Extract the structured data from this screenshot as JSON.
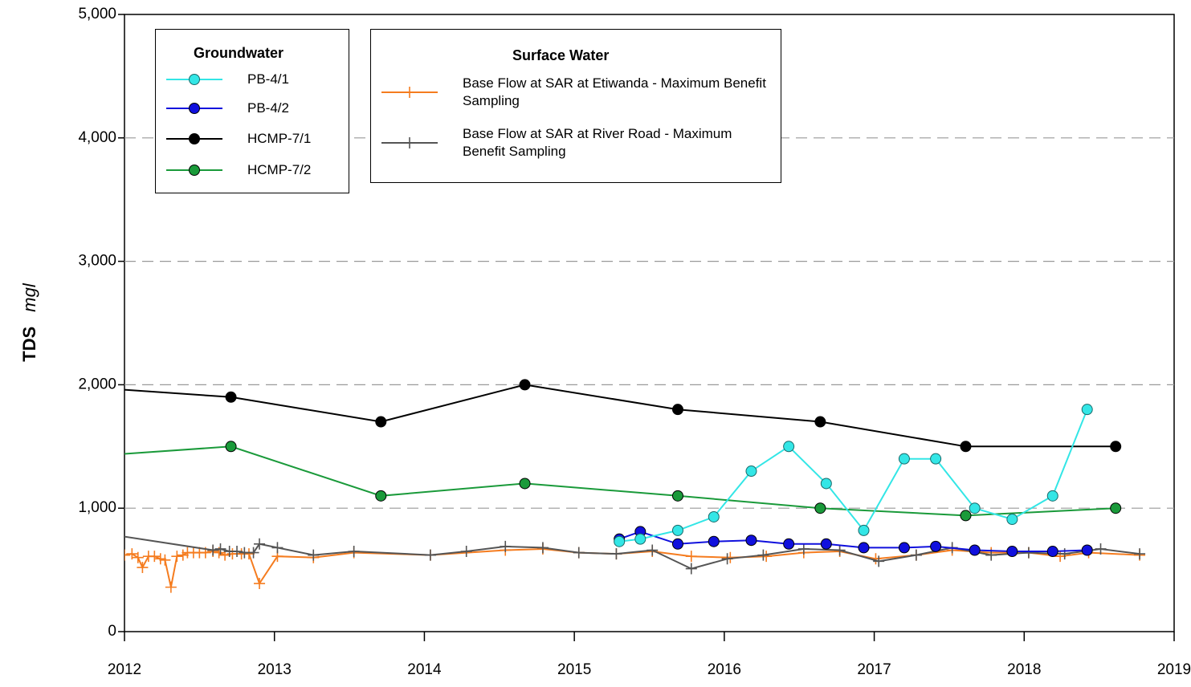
{
  "chart_data": {
    "type": "line",
    "y_label": "TDS",
    "y_unit": "mgl",
    "xlim": [
      2012,
      2019
    ],
    "xticks": [
      2012,
      2013,
      2014,
      2015,
      2016,
      2017,
      2018,
      2019
    ],
    "ylim": [
      0,
      5000
    ],
    "yticks": [
      0,
      {
        "value": 1000,
        "label": "1,000"
      },
      {
        "value": 2000,
        "label": "2,000"
      },
      {
        "value": 3000,
        "label": "3,000"
      },
      {
        "value": 4000,
        "label": "4,000"
      },
      {
        "value": 5000,
        "label": "5,000"
      }
    ],
    "grid": true,
    "legend_titles": [
      "Groundwater",
      "Surface Water"
    ],
    "series": [
      {
        "name": "PB-4/1",
        "color": "#33e6e6",
        "marker": "circle",
        "x": [
          2015.3,
          2015.44,
          2015.69,
          2015.93,
          2016.18,
          2016.43,
          2016.68,
          2016.93,
          2017.2,
          2017.41,
          2017.67,
          2017.92,
          2018.19,
          2018.42
        ],
        "values": [
          730,
          750,
          820,
          930,
          1300,
          1500,
          1200,
          820,
          1400,
          1400,
          1000,
          910,
          1100,
          1800
        ]
      },
      {
        "name": "PB-4/2",
        "color": "#1010dd",
        "marker": "circle",
        "x": [
          2015.3,
          2015.44,
          2015.69,
          2015.93,
          2016.18,
          2016.43,
          2016.68,
          2016.93,
          2017.2,
          2017.41,
          2017.67,
          2017.92,
          2018.19,
          2018.42
        ],
        "values": [
          750,
          810,
          710,
          730,
          740,
          710,
          710,
          680,
          680,
          690,
          660,
          650,
          650,
          660
        ]
      },
      {
        "name": "HCMP-7/1",
        "color": "#000000",
        "marker": "circle",
        "x": [
          2011.7,
          2012.71,
          2013.71,
          2014.67,
          2015.69,
          2016.64,
          2017.61,
          2018.61
        ],
        "values": [
          1985,
          1900,
          1700,
          2000,
          1800,
          1700,
          1500,
          1500
        ]
      },
      {
        "name": "HCMP-7/2",
        "color": "#1a9a3a",
        "marker": "circle",
        "x": [
          2011.7,
          2012.71,
          2013.71,
          2014.67,
          2015.69,
          2016.64,
          2017.61,
          2018.61
        ],
        "values": [
          1415,
          1500,
          1100,
          1200,
          1100,
          1000,
          940,
          1000
        ]
      },
      {
        "name": "Base Flow at SAR at Etiwanda - Maximum Benefit Sampling",
        "color": "#f57c1f",
        "marker": "plus",
        "x": [
          2012.0,
          2012.05,
          2012.09,
          2012.12,
          2012.16,
          2012.2,
          2012.24,
          2012.27,
          2012.31,
          2012.35,
          2012.39,
          2012.42,
          2012.46,
          2012.5,
          2012.54,
          2012.59,
          2012.63,
          2012.67,
          2012.72,
          2012.78,
          2012.83,
          2012.9,
          2013.02,
          2013.26,
          2013.53,
          2014.04,
          2014.54,
          2014.79,
          2015.03,
          2015.28,
          2015.52,
          2015.78,
          2016.04,
          2016.28,
          2016.53,
          2016.77,
          2017.01,
          2017.28,
          2017.52,
          2017.78,
          2018.03,
          2018.24,
          2018.43,
          2018.77
        ],
        "values": [
          620,
          630,
          600,
          520,
          610,
          610,
          590,
          580,
          360,
          610,
          620,
          640,
          640,
          640,
          640,
          650,
          640,
          620,
          630,
          630,
          630,
          390,
          610,
          600,
          640,
          620,
          660,
          670,
          640,
          630,
          650,
          610,
          600,
          610,
          640,
          650,
          590,
          620,
          660,
          640,
          640,
          610,
          640,
          620
        ]
      },
      {
        "name": "Base Flow at SAR at River Road - Maximum Benefit Sampling",
        "color": "#555555",
        "marker": "plus",
        "x": [
          2011.8,
          2012.59,
          2012.64,
          2012.7,
          2012.75,
          2012.8,
          2012.86,
          2012.9,
          2013.02,
          2013.26,
          2013.53,
          2014.04,
          2014.28,
          2014.54,
          2014.79,
          2015.03,
          2015.28,
          2015.52,
          2015.78,
          2016.02,
          2016.26,
          2016.53,
          2016.77,
          2017.03,
          2017.28,
          2017.52,
          2017.78,
          2018.03,
          2018.27,
          2018.51,
          2018.77
        ],
        "values": [
          807,
          660,
          670,
          650,
          650,
          640,
          640,
          710,
          680,
          620,
          650,
          620,
          650,
          690,
          680,
          640,
          630,
          660,
          510,
          590,
          620,
          670,
          660,
          570,
          620,
          680,
          620,
          640,
          630,
          670,
          630
        ]
      }
    ]
  }
}
